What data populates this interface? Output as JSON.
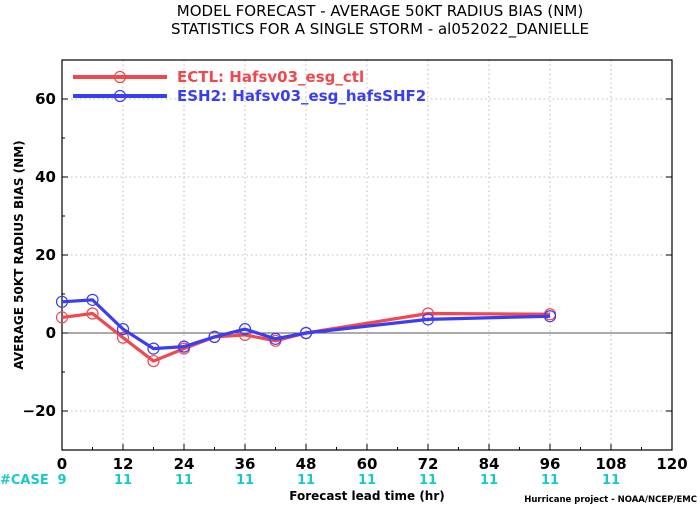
{
  "chart_data": {
    "type": "line",
    "title_line1": "MODEL FORECAST - AVERAGE 50KT RADIUS BIAS (NM)",
    "title_line2": "STATISTICS FOR A SINGLE STORM - al052022_DANIELLE",
    "xlabel": "Forecast lead time (hr)",
    "ylabel": "AVERAGE 50KT RADIUS BIAS (NM)",
    "credit": "Hurricane project - NOAA/NCEP/EMC",
    "xlim": [
      0,
      120
    ],
    "ylim": [
      -30,
      70
    ],
    "xticks": [
      0,
      12,
      24,
      36,
      48,
      60,
      72,
      84,
      96,
      108,
      120
    ],
    "yticks": [
      -20,
      0,
      20,
      40,
      60
    ],
    "grid": true,
    "legend_position": "top-left",
    "series": [
      {
        "name": "ECTL: Hafsv03_esg_ctl",
        "color": "#f0484f",
        "points": [
          [
            0,
            4
          ],
          [
            6,
            5
          ],
          [
            12,
            -1.2
          ],
          [
            18,
            -7.2
          ],
          [
            24,
            -4
          ],
          [
            30,
            -1
          ],
          [
            36,
            -0.5
          ],
          [
            42,
            -2
          ],
          [
            48,
            0
          ],
          [
            72,
            5
          ],
          [
            96,
            4.8
          ]
        ]
      },
      {
        "name": "ESH2: Hafsv03_esg_hafsSHF2",
        "color": "#3a3ef0",
        "points": [
          [
            0,
            8
          ],
          [
            6,
            8.5
          ],
          [
            12,
            1
          ],
          [
            18,
            -4
          ],
          [
            24,
            -3.5
          ],
          [
            30,
            -1
          ],
          [
            36,
            1
          ],
          [
            42,
            -1.5
          ],
          [
            48,
            0
          ],
          [
            72,
            3.5
          ],
          [
            96,
            4.3
          ]
        ]
      }
    ],
    "cases": {
      "label": "#CASE",
      "label_color": "#1ac8c8",
      "values": [
        {
          "x": 0,
          "text": "9"
        },
        {
          "x": 12,
          "text": "11"
        },
        {
          "x": 24,
          "text": "11"
        },
        {
          "x": 36,
          "text": "11"
        },
        {
          "x": 48,
          "text": "11"
        },
        {
          "x": 60,
          "text": "11"
        },
        {
          "x": 72,
          "text": "11"
        },
        {
          "x": 84,
          "text": "11"
        },
        {
          "x": 96,
          "text": "11"
        },
        {
          "x": 108,
          "text": "11"
        }
      ]
    }
  }
}
